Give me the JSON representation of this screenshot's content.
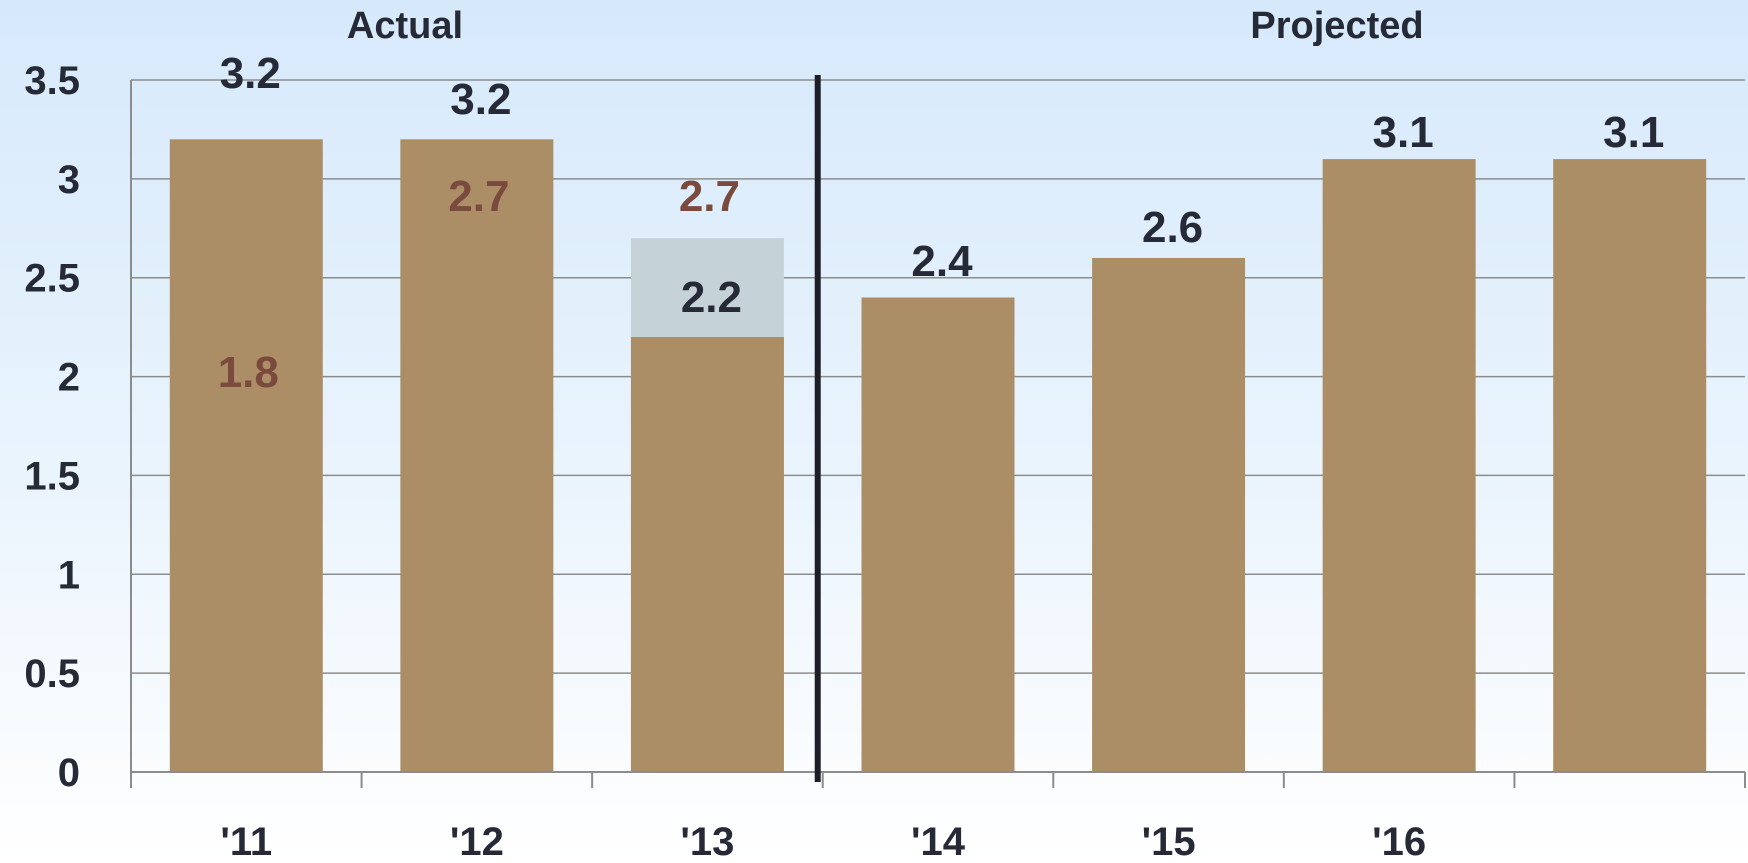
{
  "chart_data": {
    "type": "bar",
    "categories": [
      "'11",
      "'12",
      "'13",
      "'14",
      "'15",
      "'16",
      ""
    ],
    "series": [
      {
        "values": [
          3.2,
          3.2,
          2.2,
          2.4,
          2.6,
          3.1,
          3.1
        ]
      },
      {
        "values": [
          null,
          null,
          2.7,
          null,
          null,
          null,
          null
        ]
      }
    ],
    "value_labels": [
      "3.2",
      "3.2",
      "2.2",
      "2.4",
      "2.6",
      "3.1",
      "3.1"
    ],
    "alt_labels": [
      "1.8",
      "2.7",
      "2.7",
      "",
      "",
      "",
      ""
    ],
    "sections": [
      "Actual",
      "Projected"
    ],
    "divider_after_index": 2,
    "y_ticks": [
      "0",
      "0.5",
      "1",
      "1.5",
      "2",
      "2.5",
      "3",
      "3.5"
    ],
    "ylim": [
      0,
      3.5
    ],
    "grid": true,
    "title": "",
    "xlabel": "",
    "ylabel": "",
    "colors": {
      "bar": "#ac8e66",
      "overlay": "#c5d3d9",
      "alt_label": "#7a4a3e",
      "text": "#262a36",
      "grid": "#8c8c8c",
      "divider": "#1e1e28"
    }
  }
}
